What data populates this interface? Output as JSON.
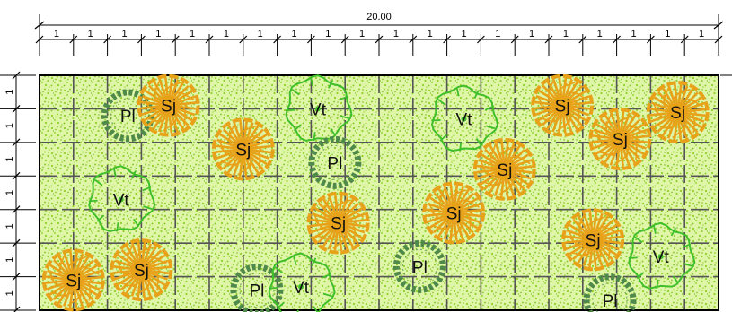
{
  "drawing": {
    "total_dimension": "20.00",
    "segment_label": "1",
    "horizontal_segments": 20,
    "vertical_segments": 7
  },
  "legend_colors": {
    "background": "#ffffff",
    "bed_fill": "#dff5a8",
    "bed_dots": "#8fd12a",
    "grid": "#555555",
    "border": "#000000",
    "Sj": "#e8a21a",
    "Vt": "#3fbf2a",
    "Pl": "#4f8a4a"
  },
  "plants": [
    {
      "code": "Pl",
      "x": 2.6,
      "y": 1.2
    },
    {
      "code": "Sj",
      "x": 3.8,
      "y": 0.9
    },
    {
      "code": "Vt",
      "x": 8.2,
      "y": 1.0
    },
    {
      "code": "Sj",
      "x": 6.0,
      "y": 2.2
    },
    {
      "code": "Pl",
      "x": 8.7,
      "y": 2.6
    },
    {
      "code": "Vt",
      "x": 2.4,
      "y": 3.7
    },
    {
      "code": "Sj",
      "x": 1.0,
      "y": 6.1
    },
    {
      "code": "Sj",
      "x": 3.0,
      "y": 5.8
    },
    {
      "code": "Sj",
      "x": 8.8,
      "y": 4.4
    },
    {
      "code": "Pl",
      "x": 6.4,
      "y": 6.4
    },
    {
      "code": "Vt",
      "x": 7.7,
      "y": 6.3
    },
    {
      "code": "Vt",
      "x": 12.5,
      "y": 1.3
    },
    {
      "code": "Sj",
      "x": 12.2,
      "y": 4.1
    },
    {
      "code": "Sj",
      "x": 13.7,
      "y": 2.8
    },
    {
      "code": "Pl",
      "x": 11.2,
      "y": 5.7
    },
    {
      "code": "Sj",
      "x": 15.4,
      "y": 0.9
    },
    {
      "code": "Sj",
      "x": 17.1,
      "y": 1.9
    },
    {
      "code": "Sj",
      "x": 18.8,
      "y": 1.1
    },
    {
      "code": "Sj",
      "x": 16.3,
      "y": 4.9
    },
    {
      "code": "Vt",
      "x": 18.3,
      "y": 5.4
    },
    {
      "code": "Pl",
      "x": 16.8,
      "y": 6.7
    }
  ]
}
